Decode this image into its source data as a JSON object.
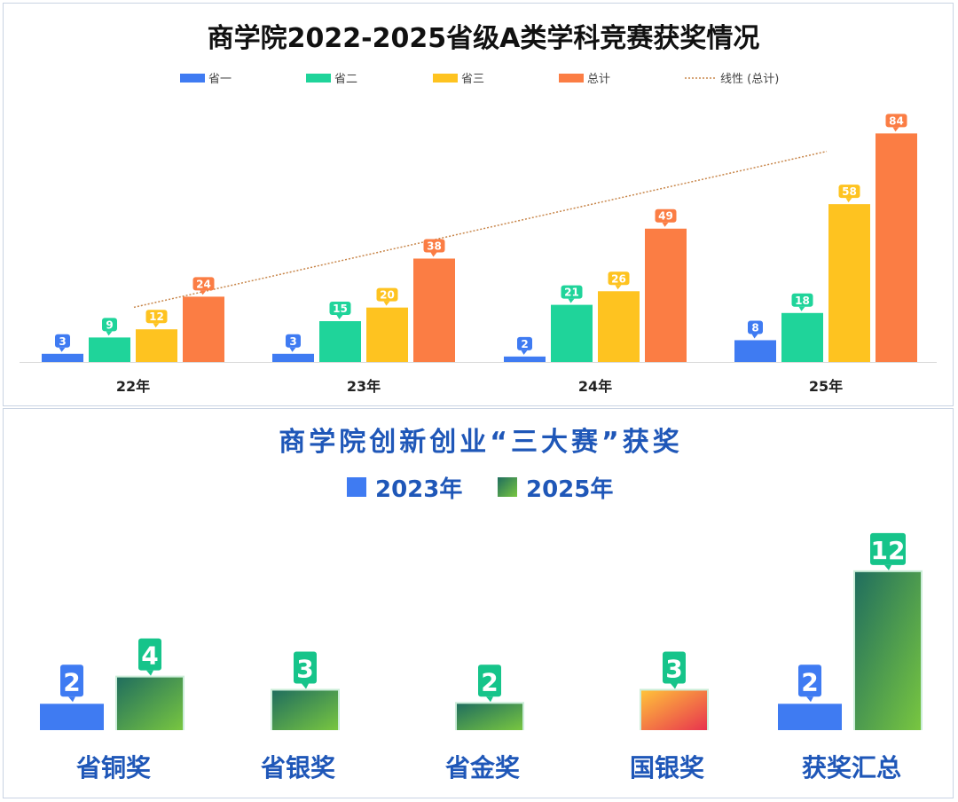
{
  "colors": {
    "p1": "#3f7bf2",
    "p2": "#1fd49a",
    "p3": "#fec320",
    "total": "#fb7d44",
    "trend": "#c8874c",
    "blue_title": "#1f57b8",
    "green_label": "#16c48a",
    "green_dark": "#206e5e",
    "green_light": "#78c640",
    "orange_a": "#ffc23a",
    "orange_b": "#e8344e"
  },
  "chart_data": [
    {
      "type": "bar",
      "title": "商学院2022-2025省级A类学科竞赛获奖情况",
      "categories": [
        "22年",
        "23年",
        "24年",
        "25年"
      ],
      "series": [
        {
          "name": "省一",
          "values": [
            3,
            3,
            2,
            8
          ]
        },
        {
          "name": "省二",
          "values": [
            9,
            15,
            21,
            18
          ]
        },
        {
          "name": "省三",
          "values": [
            12,
            20,
            26,
            58
          ]
        },
        {
          "name": "总计",
          "values": [
            24,
            38,
            49,
            84
          ]
        }
      ],
      "trendline": {
        "name": "线性 (总计)",
        "of": "总计"
      },
      "ylim": [
        0,
        90
      ],
      "legend": "top"
    },
    {
      "type": "bar",
      "title": "商学院创新创业“三大赛”获奖",
      "categories": [
        "省铜奖",
        "省银奖",
        "省金奖",
        "国银奖",
        "获奖汇总"
      ],
      "series": [
        {
          "name": "2023年",
          "values": [
            2,
            null,
            null,
            null,
            2
          ]
        },
        {
          "name": "2025年",
          "values": [
            4,
            3,
            2,
            3,
            12
          ]
        }
      ],
      "ylim": [
        0,
        13
      ],
      "legend": "top"
    }
  ]
}
